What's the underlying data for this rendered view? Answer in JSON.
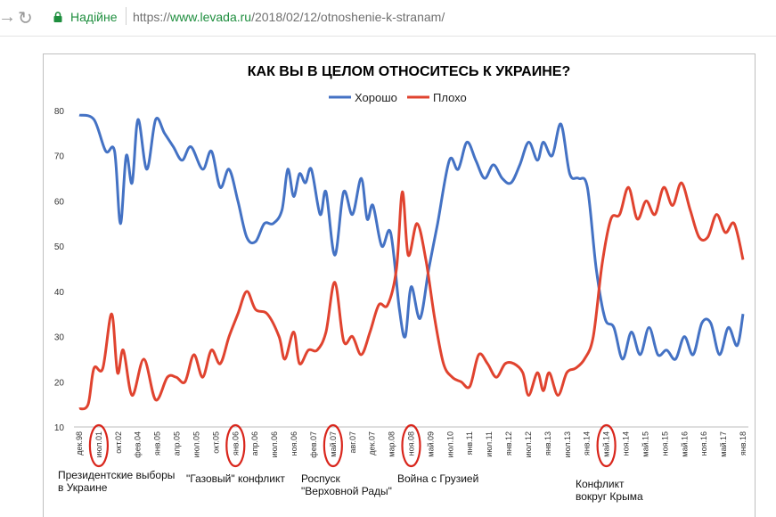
{
  "browser": {
    "status": "Надійне",
    "url_scheme": "https://",
    "url_host": "www.levada.ru",
    "url_path": "/2018/02/12/otnoshenie-k-stranam/"
  },
  "chart_data": {
    "type": "line",
    "title": "КАК ВЫ В ЦЕЛОМ ОТНОСИТЕСЬ К УКРАИНЕ?",
    "xlabel": "",
    "ylabel": "",
    "ylim": [
      10,
      80
    ],
    "yticks": [
      10,
      20,
      30,
      40,
      50,
      60,
      70,
      80
    ],
    "legend_position": "top",
    "grid": false,
    "categories": [
      "дек.98",
      "июл.01",
      "окт.02",
      "фев.04",
      "янв.05",
      "апр.05",
      "июл.05",
      "окт.05",
      "янв.06",
      "апр.06",
      "июл.06",
      "ноя.06",
      "фев.07",
      "май.07",
      "авг.07",
      "дек.07",
      "мар.08",
      "ноя.08",
      "май.09",
      "июл.10",
      "янв.11",
      "июл.11",
      "янв.12",
      "июл.12",
      "янв.13",
      "июл.13",
      "янв.14",
      "май.14",
      "ноя.14",
      "май.15",
      "ноя.15",
      "май.16",
      "ноя.16",
      "май.17",
      "янв.18"
    ],
    "circled_categories": [
      "июл.01",
      "янв.06",
      "май.07",
      "ноя.08",
      "май.14"
    ],
    "series": [
      {
        "name": "Хорошо",
        "color": "#4472C4",
        "points": [
          [
            0,
            79
          ],
          [
            0.5,
            78
          ],
          [
            0.9,
            71
          ],
          [
            1.2,
            71
          ],
          [
            1.4,
            55
          ],
          [
            1.6,
            70
          ],
          [
            1.8,
            64
          ],
          [
            2.0,
            78
          ],
          [
            2.3,
            67
          ],
          [
            2.6,
            78
          ],
          [
            2.9,
            75
          ],
          [
            3.2,
            72
          ],
          [
            3.5,
            69
          ],
          [
            3.8,
            72
          ],
          [
            4.2,
            67
          ],
          [
            4.5,
            71
          ],
          [
            4.8,
            63
          ],
          [
            5.1,
            67
          ],
          [
            5.4,
            60
          ],
          [
            5.7,
            52
          ],
          [
            6.0,
            51
          ],
          [
            6.3,
            55
          ],
          [
            6.6,
            55
          ],
          [
            6.9,
            58
          ],
          [
            7.1,
            67
          ],
          [
            7.3,
            61
          ],
          [
            7.5,
            66
          ],
          [
            7.7,
            64
          ],
          [
            7.9,
            67
          ],
          [
            8.2,
            57
          ],
          [
            8.4,
            62
          ],
          [
            8.7,
            48
          ],
          [
            9.0,
            62
          ],
          [
            9.3,
            57
          ],
          [
            9.6,
            65
          ],
          [
            9.8,
            56
          ],
          [
            10.0,
            59
          ],
          [
            10.3,
            50
          ],
          [
            10.6,
            53
          ],
          [
            10.9,
            36
          ],
          [
            11.1,
            30
          ],
          [
            11.3,
            41
          ],
          [
            11.6,
            34
          ],
          [
            11.9,
            45
          ],
          [
            12.2,
            55
          ],
          [
            12.6,
            69
          ],
          [
            12.9,
            67
          ],
          [
            13.2,
            73
          ],
          [
            13.5,
            69
          ],
          [
            13.8,
            65
          ],
          [
            14.1,
            68
          ],
          [
            14.4,
            65
          ],
          [
            14.7,
            64
          ],
          [
            15.0,
            68
          ],
          [
            15.3,
            73
          ],
          [
            15.6,
            69
          ],
          [
            15.8,
            73
          ],
          [
            16.1,
            70
          ],
          [
            16.4,
            77
          ],
          [
            16.7,
            66
          ],
          [
            17.0,
            65
          ],
          [
            17.3,
            63
          ],
          [
            17.6,
            45
          ],
          [
            17.9,
            34
          ],
          [
            18.2,
            32
          ],
          [
            18.5,
            25
          ],
          [
            18.8,
            31
          ],
          [
            19.1,
            26
          ],
          [
            19.4,
            32
          ],
          [
            19.7,
            26
          ],
          [
            20.0,
            27
          ],
          [
            20.3,
            25
          ],
          [
            20.6,
            30
          ],
          [
            20.9,
            26
          ],
          [
            21.2,
            33
          ],
          [
            21.5,
            33
          ],
          [
            21.8,
            26
          ],
          [
            22.1,
            32
          ],
          [
            22.4,
            28
          ],
          [
            22.6,
            35
          ]
        ]
      },
      {
        "name": "Плохо",
        "color": "#E0432F",
        "points": [
          [
            0,
            14
          ],
          [
            0.3,
            15
          ],
          [
            0.5,
            23
          ],
          [
            0.8,
            23
          ],
          [
            1.1,
            35
          ],
          [
            1.3,
            22
          ],
          [
            1.5,
            27
          ],
          [
            1.8,
            17
          ],
          [
            2.2,
            25
          ],
          [
            2.6,
            16
          ],
          [
            3.0,
            21
          ],
          [
            3.3,
            21
          ],
          [
            3.6,
            20
          ],
          [
            3.9,
            26
          ],
          [
            4.2,
            21
          ],
          [
            4.5,
            27
          ],
          [
            4.8,
            24
          ],
          [
            5.1,
            30
          ],
          [
            5.4,
            35
          ],
          [
            5.7,
            40
          ],
          [
            6.0,
            36
          ],
          [
            6.4,
            35
          ],
          [
            6.8,
            30
          ],
          [
            7.0,
            25
          ],
          [
            7.3,
            31
          ],
          [
            7.5,
            24
          ],
          [
            7.8,
            27
          ],
          [
            8.1,
            27
          ],
          [
            8.4,
            31
          ],
          [
            8.7,
            42
          ],
          [
            9.0,
            29
          ],
          [
            9.3,
            30
          ],
          [
            9.6,
            26
          ],
          [
            9.9,
            31
          ],
          [
            10.2,
            37
          ],
          [
            10.5,
            37
          ],
          [
            10.8,
            45
          ],
          [
            11.0,
            62
          ],
          [
            11.2,
            48
          ],
          [
            11.5,
            55
          ],
          [
            11.8,
            47
          ],
          [
            12.1,
            34
          ],
          [
            12.4,
            24
          ],
          [
            12.7,
            21
          ],
          [
            13.0,
            20
          ],
          [
            13.3,
            19
          ],
          [
            13.6,
            26
          ],
          [
            13.9,
            24
          ],
          [
            14.2,
            21
          ],
          [
            14.5,
            24
          ],
          [
            14.8,
            24
          ],
          [
            15.1,
            22
          ],
          [
            15.3,
            17
          ],
          [
            15.6,
            22
          ],
          [
            15.8,
            18
          ],
          [
            16.0,
            22
          ],
          [
            16.3,
            17
          ],
          [
            16.6,
            22
          ],
          [
            16.9,
            23
          ],
          [
            17.2,
            25
          ],
          [
            17.5,
            30
          ],
          [
            17.8,
            46
          ],
          [
            18.1,
            56
          ],
          [
            18.4,
            57
          ],
          [
            18.7,
            63
          ],
          [
            19.0,
            56
          ],
          [
            19.3,
            60
          ],
          [
            19.6,
            57
          ],
          [
            19.9,
            63
          ],
          [
            20.2,
            59
          ],
          [
            20.5,
            64
          ],
          [
            20.8,
            58
          ],
          [
            21.1,
            52
          ],
          [
            21.4,
            52
          ],
          [
            21.7,
            57
          ],
          [
            22.0,
            53
          ],
          [
            22.3,
            55
          ],
          [
            22.6,
            47
          ]
        ]
      }
    ]
  },
  "annotations": [
    {
      "lines": [
        "Президентские выборы",
        "в Украине"
      ]
    },
    {
      "lines": [
        "\"Газовый\" конфликт"
      ]
    },
    {
      "lines": [
        "Роспуск",
        "\"Верховной Рады\""
      ]
    },
    {
      "lines": [
        "Война с Грузией"
      ]
    },
    {
      "lines": [
        "Конфликт",
        "вокруг Крыма"
      ]
    }
  ]
}
